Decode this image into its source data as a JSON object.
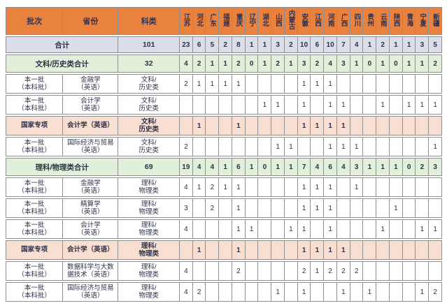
{
  "colors": {
    "header_bg": "#e8823e",
    "header_text": "#2c3358",
    "total_row_bg": "#dbddeb",
    "subtotal_row_bg": "#e2f0db",
    "national_program_row_bg": "#f8dfd2",
    "grid_line": "#8f8f8f",
    "body_text": "#2e3148"
  },
  "table": {
    "header": {
      "batch_label": "批次",
      "province_label": "省份",
      "category_label": "科类",
      "province_columns": [
        "江苏",
        "河北",
        "广东",
        "福建",
        "重庆",
        "辽宁",
        "湖北",
        "山西",
        "内蒙古",
        "安徽",
        "江西",
        "河南",
        "广西",
        "四川",
        "贵州",
        "云南",
        "陕西",
        "青海",
        "宁夏",
        "新疆"
      ]
    },
    "rows": [
      {
        "kind": "total",
        "name": "total-row",
        "label": "合计",
        "plan": "101",
        "values": [
          "23",
          "6",
          "5",
          "2",
          "8",
          "1",
          "1",
          "3",
          "2",
          "10",
          "6",
          "10",
          "7",
          "4",
          "1",
          "2",
          "1",
          "1",
          "3",
          "5"
        ]
      },
      {
        "kind": "subtotal",
        "name": "liberal-arts-subtotal-row",
        "label": "文科/历史类合计",
        "plan": "32",
        "values": [
          "4",
          "2",
          "1",
          "1",
          "2",
          "0",
          "1",
          "2",
          "1",
          "3",
          "2",
          "4",
          "3",
          "1",
          "0",
          "1",
          "0",
          "1",
          "1",
          "2"
        ]
      },
      {
        "kind": "detail",
        "variant": "white",
        "name": "finance-liberal-row",
        "batch": "本一批\n（本科批）",
        "major": "金融学\n（英语）",
        "category": "文科/\n历史类",
        "values": [
          "2",
          "1",
          "1",
          "1",
          "1",
          "",
          "",
          "",
          "",
          "1",
          "1",
          "1",
          "",
          "",
          "",
          "",
          "",
          "",
          "",
          ""
        ]
      },
      {
        "kind": "detail",
        "variant": "white",
        "name": "accounting-liberal-row",
        "batch": "本一批\n（本科批）",
        "major": "会计学\n（英语）",
        "category": "文科/\n历史类",
        "values": [
          "",
          "",
          "",
          "",
          "",
          "",
          "1",
          "1",
          "",
          "1",
          "",
          "1",
          "1",
          "",
          "",
          "1",
          "",
          "1",
          "1",
          "1"
        ]
      },
      {
        "kind": "detail",
        "variant": "pink",
        "name": "accounting-national-liberal-row",
        "batch": "国家专项",
        "major": "会计学（英语）",
        "category": "文科/\n历史类",
        "values": [
          "",
          "1",
          "",
          "",
          "1",
          "",
          "",
          "",
          "",
          "1",
          "1",
          "1",
          "1",
          "",
          "",
          "",
          "",
          "",
          "",
          ""
        ]
      },
      {
        "kind": "detail",
        "variant": "white",
        "name": "trade-liberal-row",
        "batch": "本一批\n（本科批）",
        "major": "国际经济与贸易\n（英语）",
        "category": "文科/\n历史类",
        "values": [
          "2",
          "",
          "",
          "",
          "",
          "",
          "",
          "1",
          "1",
          "",
          "",
          "1",
          "1",
          "1",
          "",
          "",
          "",
          "",
          "",
          "1"
        ]
      },
      {
        "kind": "subtotal",
        "name": "science-subtotal-row",
        "label": "理科/物理类合计",
        "plan": "69",
        "values": [
          "19",
          "4",
          "4",
          "1",
          "6",
          "1",
          "0",
          "1",
          "1",
          "7",
          "4",
          "6",
          "4",
          "3",
          "1",
          "1",
          "1",
          "0",
          "2",
          "3"
        ]
      },
      {
        "kind": "detail",
        "variant": "white",
        "name": "finance-science-row",
        "batch": "本一批\n（本科批）",
        "major": "金融学\n（英语）",
        "category": "理科/\n物理类",
        "values": [
          "4",
          "1",
          "2",
          "1",
          "1",
          "",
          "",
          "",
          "",
          "1",
          "1",
          "1",
          "",
          "1",
          "",
          "",
          "",
          "",
          "",
          ""
        ]
      },
      {
        "kind": "detail",
        "variant": "white",
        "name": "actuarial-science-row",
        "batch": "本一批\n（本科批）",
        "major": "精算学\n（英语）",
        "category": "理科/\n物理类",
        "values": [
          "3",
          "",
          "2",
          "",
          "1",
          "",
          "",
          "",
          "",
          "1",
          "1",
          "1",
          "",
          "",
          "",
          "",
          "1",
          "",
          "",
          ""
        ]
      },
      {
        "kind": "detail",
        "variant": "white",
        "name": "accounting-science-row",
        "batch": "本一批\n（本科批）",
        "major": "会计学\n（英语）",
        "category": "理科/\n物理类",
        "values": [
          "4",
          "",
          "",
          "",
          "1",
          "1",
          "",
          "",
          "1",
          "1",
          "",
          "1",
          "",
          "",
          "",
          "1",
          "",
          "",
          "1",
          "1"
        ]
      },
      {
        "kind": "detail",
        "variant": "pink",
        "name": "accounting-national-science-row",
        "batch": "国家专项",
        "major": "会计学（英语）",
        "category": "理科/\n物理类",
        "values": [
          "",
          "1",
          "",
          "",
          "1",
          "",
          "",
          "",
          "",
          "1",
          "1",
          "1",
          "1",
          "",
          "",
          "",
          "",
          "",
          "",
          ""
        ]
      },
      {
        "kind": "detail",
        "variant": "white",
        "name": "data-science-row",
        "batch": "本一批\n（本科批）",
        "major": "数据科学与大数\n据技术（英语）",
        "category": "理科/\n物理类",
        "values": [
          "4",
          "",
          "",
          "",
          "2",
          "",
          "",
          "",
          "",
          "2",
          "1",
          "2",
          "2",
          "2",
          "",
          "",
          "",
          "",
          "",
          ""
        ]
      },
      {
        "kind": "detail",
        "variant": "white",
        "name": "trade-science-row",
        "batch": "本一批\n（本科批）",
        "major": "国际经济与贸易\n（英语）",
        "category": "理科/\n物理类",
        "values": [
          "4",
          "2",
          "",
          "",
          "",
          "",
          "",
          "1",
          "",
          "1",
          "",
          "",
          "1",
          "",
          "1",
          "",
          "",
          "",
          "1",
          "2"
        ]
      }
    ]
  }
}
